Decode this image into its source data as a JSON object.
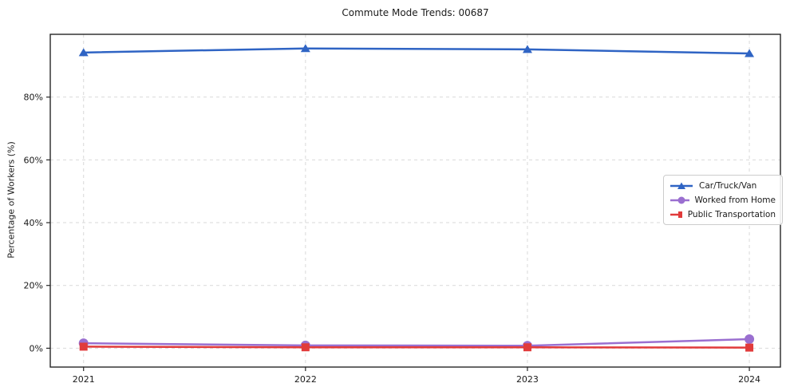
{
  "chart_data": {
    "type": "line",
    "title": "Commute Mode Trends: 00687",
    "xlabel": "",
    "ylabel": "Percentage of Workers (%)",
    "x": [
      2021,
      2022,
      2023,
      2024
    ],
    "xtick_labels": [
      "2021",
      "2022",
      "2023",
      "2024"
    ],
    "yticks": [
      0,
      20,
      40,
      60,
      80
    ],
    "ytick_labels": [
      "0%",
      "20%",
      "40%",
      "60%",
      "80%"
    ],
    "xlim": [
      2020.85,
      2024.14
    ],
    "ylim": [
      -6,
      100
    ],
    "grid": true,
    "grid_style": "dashed",
    "legend_position": "center-right",
    "series": [
      {
        "name": "Car/Truck/Van",
        "values": [
          94.2,
          95.5,
          95.2,
          93.9
        ],
        "color": "#2f64c4",
        "marker": "triangle"
      },
      {
        "name": "Worked from Home",
        "values": [
          1.6,
          0.9,
          0.8,
          2.9
        ],
        "color": "#9a6fd0",
        "marker": "circle"
      },
      {
        "name": "Public Transportation",
        "values": [
          0.5,
          0.3,
          0.3,
          0.2
        ],
        "color": "#e13b3b",
        "marker": "square"
      }
    ],
    "colors": {
      "grid": "#d9d9d9",
      "spine": "#262626",
      "text": "#1a1a1a",
      "legend_border": "#cccccc"
    }
  }
}
